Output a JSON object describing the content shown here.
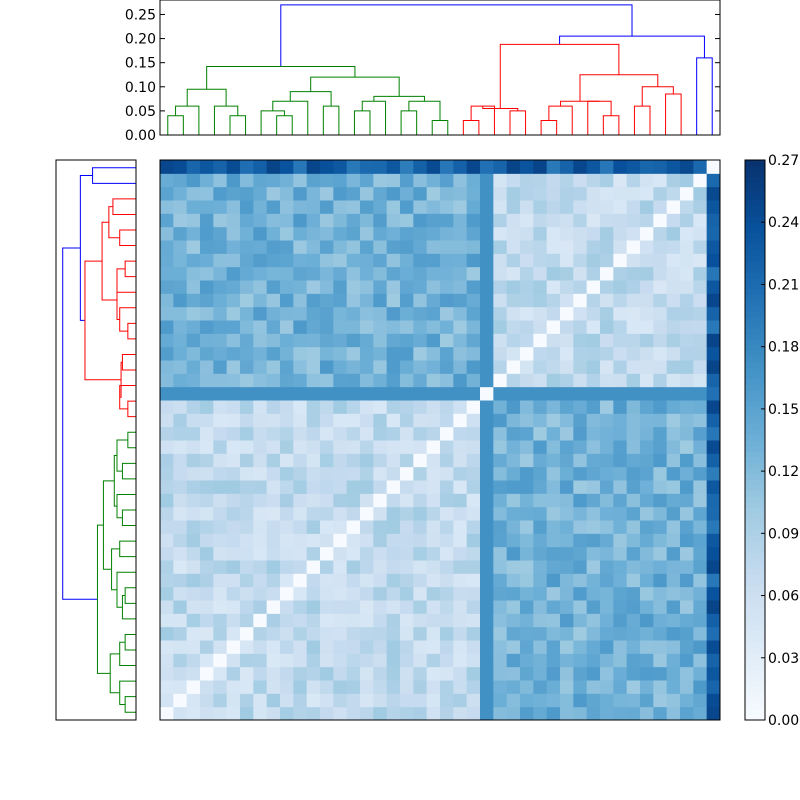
{
  "chart_data": [
    {
      "type": "dendrogram",
      "orientation": "top",
      "ylim": [
        0,
        0.28
      ],
      "y_ticks": [
        "0.00",
        "0.05",
        "0.10",
        "0.15",
        "0.20",
        "0.25"
      ],
      "y_tick_values": [
        0,
        0.05,
        0.1,
        0.15,
        0.2,
        0.25
      ],
      "leaf_count": 42,
      "link_colors": {
        "cluster_a": "#008000",
        "cluster_b": "#ff0000",
        "above_threshold": "#0000ff"
      },
      "merge_heights": {
        "root": 0.27,
        "cluster_a_and_b_parent": 0.205,
        "cluster_a_top": 0.142,
        "cluster_b_top": 0.188
      }
    },
    {
      "type": "dendrogram",
      "orientation": "left",
      "leaf_count": 42,
      "link_colors": {
        "cluster_a": "#008000",
        "cluster_b": "#ff0000",
        "above_threshold": "#0000ff"
      }
    },
    {
      "type": "heatmap",
      "rows": 42,
      "cols": 42,
      "colormap": "Blues",
      "vmin": 0.0,
      "vmax": 0.27,
      "diagonal_value": 0.0,
      "cluster_split_index": 24,
      "typical_values": {
        "within_cluster": 0.07,
        "between_clusters": 0.13,
        "darkest_outlier_row_col": 0.22
      },
      "colorbar_ticks": [
        "0.00",
        "0.03",
        "0.06",
        "0.09",
        "0.12",
        "0.15",
        "0.18",
        "0.21",
        "0.24",
        "0.27"
      ],
      "colorbar_tick_values": [
        0,
        0.03,
        0.06,
        0.09,
        0.12,
        0.15,
        0.18,
        0.21,
        0.24,
        0.27
      ]
    }
  ]
}
